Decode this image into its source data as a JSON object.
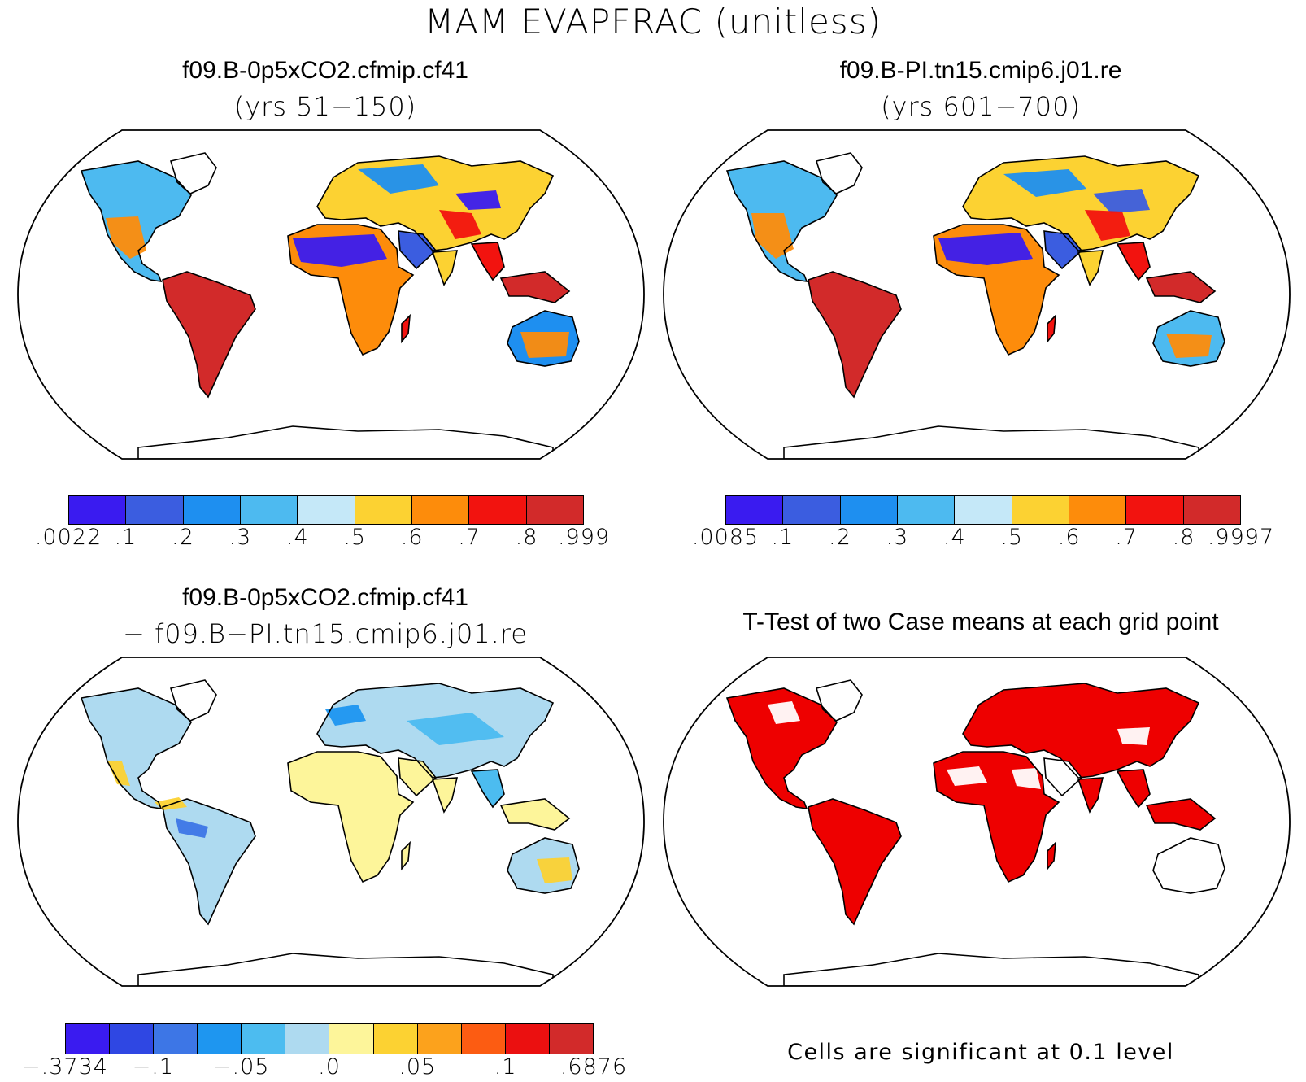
{
  "title": "MAM EVAPFRAC (unitless)",
  "panels": [
    {
      "id": "case1",
      "title": "f09.B-0p5xCO2.cfmip.cf41",
      "subtitle": "(yrs 51−150)",
      "colorbar": {
        "colors": [
          "#3a1bf0",
          "#3b5de0",
          "#1e8ff0",
          "#4dbaf0",
          "#c5e8f8",
          "#fcd232",
          "#fd8c0b",
          "#f2130f",
          "#d22a2a"
        ],
        "labels": [
          ".0022",
          ".1",
          ".2",
          ".3",
          ".4",
          ".5",
          ".6",
          ".7",
          ".8",
          ".999"
        ]
      }
    },
    {
      "id": "case2",
      "title": "f09.B-PI.tn15.cmip6.j01.re",
      "subtitle": "(yrs 601−700)",
      "colorbar": {
        "colors": [
          "#3a1bf0",
          "#3b5de0",
          "#1e8ff0",
          "#4dbaf0",
          "#c5e8f8",
          "#fcd232",
          "#fd8c0b",
          "#f2130f",
          "#d22a2a"
        ],
        "labels": [
          ".0085",
          ".1",
          ".2",
          ".3",
          ".4",
          ".5",
          ".6",
          ".7",
          ".8",
          ".9997"
        ]
      }
    },
    {
      "id": "diff",
      "title": "f09.B-0p5xCO2.cfmip.cf41",
      "subtitle": "− f09.B−PI.tn15.cmip6.j01.re",
      "colorbar": {
        "colors": [
          "#3a1bf0",
          "#2f47e3",
          "#3d76e6",
          "#1e96f0",
          "#4cbcf0",
          "#aedaf0",
          "#fdf59a",
          "#fcd232",
          "#fca21c",
          "#fc5c12",
          "#eb1010",
          "#d22a2a"
        ],
        "labels": [
          "−.3734",
          "−.1",
          "−.05",
          ".0",
          ".05",
          ".1",
          ".6876"
        ],
        "label_positions": [
          0,
          2,
          4,
          6,
          8,
          10,
          12
        ]
      }
    },
    {
      "id": "ttest",
      "title": "T-Test of two Case means at each grid point",
      "note": "Cells are significant at 0.1 level"
    }
  ],
  "map_colors": {
    "ocean": "#ffffff",
    "outline": "#000000",
    "significant": "#ee0000"
  }
}
